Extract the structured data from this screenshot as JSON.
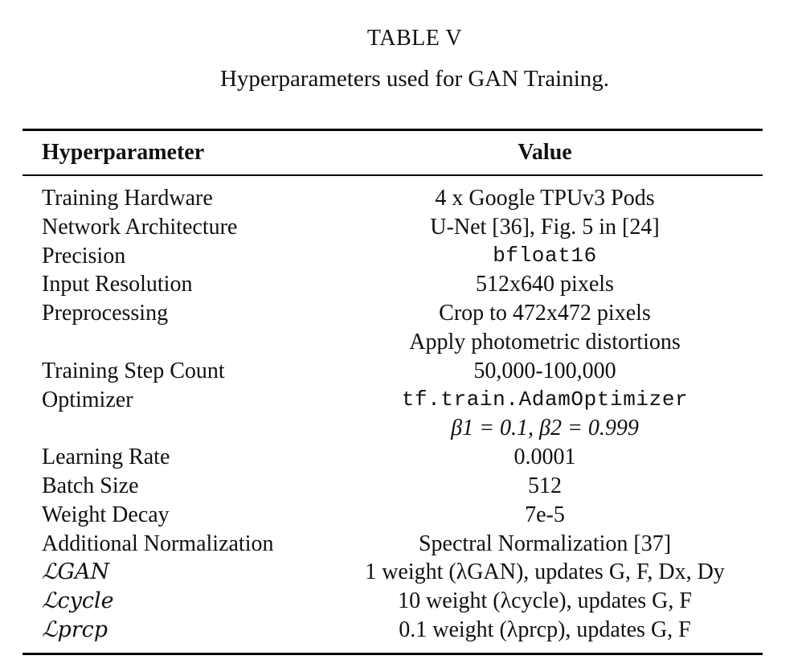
{
  "table": {
    "number": "TABLE V",
    "caption": "Hyperparameters used for GAN Training.",
    "headers": {
      "param": "Hyperparameter",
      "value": "Value"
    },
    "rows": [
      {
        "param": "Training Hardware",
        "value": "4 x Google TPUv3 Pods"
      },
      {
        "param": "Network Architecture",
        "value": "U-Net [36], Fig. 5 in [24]"
      },
      {
        "param": "Precision",
        "value": "bfloat16"
      },
      {
        "param": "Input Resolution",
        "value": "512x640 pixels"
      },
      {
        "param": "Preprocessing",
        "value": "Crop to 472x472 pixels"
      },
      {
        "param": "",
        "value": "Apply photometric distortions"
      },
      {
        "param": "Training Step Count",
        "value": "50,000-100,000"
      },
      {
        "param": "Optimizer",
        "value": "tf.train.AdamOptimizer"
      },
      {
        "param": "",
        "value": "β1 = 0.1, β2 = 0.999"
      },
      {
        "param": "Learning Rate",
        "value": "0.0001"
      },
      {
        "param": "Batch Size",
        "value": "512"
      },
      {
        "param": "Weight Decay",
        "value": "7e-5"
      },
      {
        "param": "Additional Normalization",
        "value": "Spectral Normalization [37]"
      },
      {
        "param": "ℒGAN",
        "value": "1 weight (λGAN), updates G, F, Dx, Dy"
      },
      {
        "param": "ℒcycle",
        "value": "10 weight (λcycle), updates G, F"
      },
      {
        "param": "ℒprcp",
        "value": "0.1 weight (λprcp), updates G, F"
      }
    ]
  }
}
